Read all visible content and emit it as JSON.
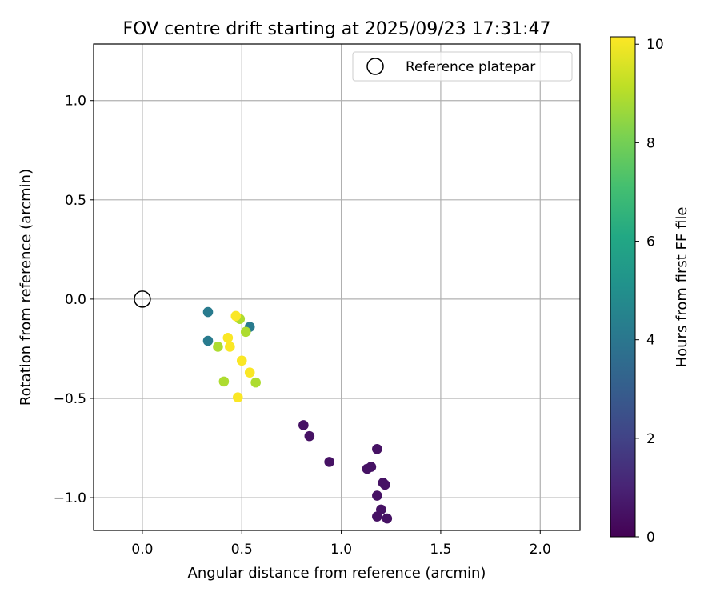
{
  "chart_data": {
    "type": "scatter",
    "title": "FOV centre drift starting at 2025/09/23 17:31:47",
    "xlabel": "Angular distance from reference (arcmin)",
    "ylabel": "Rotation from reference (arcmin)",
    "xlim": [
      -0.245,
      2.2
    ],
    "ylim": [
      -1.165,
      1.285
    ],
    "xticks": [
      0.0,
      0.5,
      1.0,
      1.5,
      2.0
    ],
    "xtick_labels": [
      "0.0",
      "0.5",
      "1.0",
      "1.5",
      "2.0"
    ],
    "yticks": [
      -1.0,
      -0.5,
      0.0,
      0.5,
      1.0
    ],
    "ytick_labels": [
      "−1.0",
      "−0.5",
      "0.0",
      "0.5",
      "1.0"
    ],
    "grid": true,
    "legend": {
      "placement": "top-right",
      "entries": [
        "Reference platepar"
      ]
    },
    "reference_point": {
      "x": 0.0,
      "y": 0.0,
      "label": "Reference platepar"
    },
    "colorbar": {
      "label": "Hours from first FF file",
      "range": [
        0,
        10.15
      ],
      "ticks": [
        0,
        2,
        4,
        6,
        8,
        10
      ],
      "tick_labels": [
        "0",
        "2",
        "4",
        "6",
        "8",
        "10"
      ],
      "colormap": "viridis"
    },
    "points": [
      {
        "x": 0.81,
        "y": -0.635,
        "hours": 0.5
      },
      {
        "x": 0.84,
        "y": -0.69,
        "hours": 0.5
      },
      {
        "x": 0.94,
        "y": -0.82,
        "hours": 0.5
      },
      {
        "x": 1.13,
        "y": -0.855,
        "hours": 0.5
      },
      {
        "x": 1.15,
        "y": -0.845,
        "hours": 0.5
      },
      {
        "x": 1.18,
        "y": -0.755,
        "hours": 0.5
      },
      {
        "x": 1.21,
        "y": -0.925,
        "hours": 0.5
      },
      {
        "x": 1.22,
        "y": -0.935,
        "hours": 0.5
      },
      {
        "x": 1.18,
        "y": -0.99,
        "hours": 0.5
      },
      {
        "x": 1.2,
        "y": -1.06,
        "hours": 0.5
      },
      {
        "x": 1.18,
        "y": -1.095,
        "hours": 0.5
      },
      {
        "x": 1.23,
        "y": -1.105,
        "hours": 0.5
      },
      {
        "x": 0.33,
        "y": -0.065,
        "hours": 4.2
      },
      {
        "x": 0.33,
        "y": -0.21,
        "hours": 4.2
      },
      {
        "x": 0.54,
        "y": -0.14,
        "hours": 4.2
      },
      {
        "x": 0.38,
        "y": -0.24,
        "hours": 8.9
      },
      {
        "x": 0.41,
        "y": -0.415,
        "hours": 8.9
      },
      {
        "x": 0.52,
        "y": -0.165,
        "hours": 8.9
      },
      {
        "x": 0.57,
        "y": -0.42,
        "hours": 8.9
      },
      {
        "x": 0.49,
        "y": -0.1,
        "hours": 8.9
      },
      {
        "x": 0.47,
        "y": -0.085,
        "hours": 10.1
      },
      {
        "x": 0.43,
        "y": -0.195,
        "hours": 10.1
      },
      {
        "x": 0.44,
        "y": -0.24,
        "hours": 10.1
      },
      {
        "x": 0.5,
        "y": -0.31,
        "hours": 10.1
      },
      {
        "x": 0.54,
        "y": -0.37,
        "hours": 10.1
      },
      {
        "x": 0.48,
        "y": -0.495,
        "hours": 10.1
      }
    ]
  }
}
